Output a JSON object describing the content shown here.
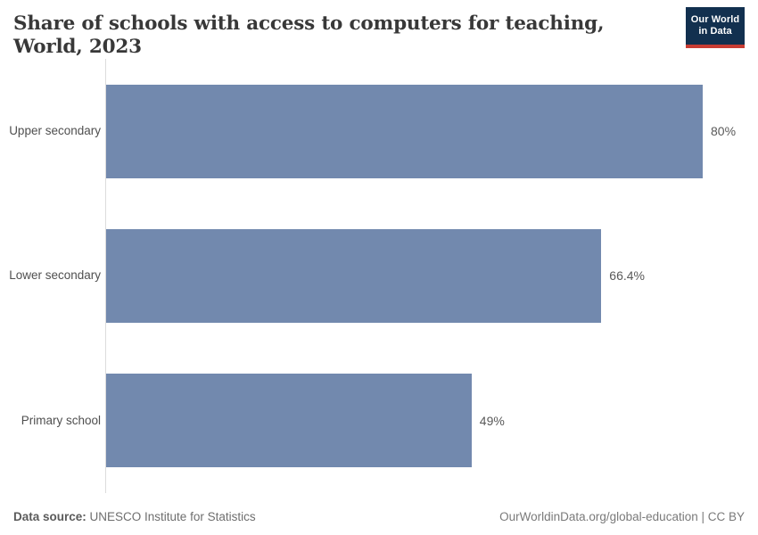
{
  "header": {
    "title": "Share of schools with access to computers for teaching, World, 2023",
    "logo": {
      "line1": "Our World",
      "line2": "in Data",
      "bg_color": "#12304f",
      "accent_color": "#c83c33"
    }
  },
  "chart_data": {
    "type": "bar",
    "orientation": "horizontal",
    "title": "Share of schools with access to computers for teaching, World, 2023",
    "categories": [
      "Upper secondary",
      "Lower secondary",
      "Primary school"
    ],
    "values": [
      80,
      66.4,
      49
    ],
    "value_labels": [
      "80%",
      "66.4%",
      "49%"
    ],
    "xlabel": "",
    "ylabel": "",
    "xlim": [
      0,
      80
    ],
    "bar_color": "#7289ae",
    "axis_line_color": "#dcdcdc",
    "grid": false,
    "legend": "none"
  },
  "footer": {
    "source_label": "Data source:",
    "source_text": " UNESCO Institute for Statistics",
    "attribution": "OurWorldinData.org/global-education | CC BY"
  }
}
